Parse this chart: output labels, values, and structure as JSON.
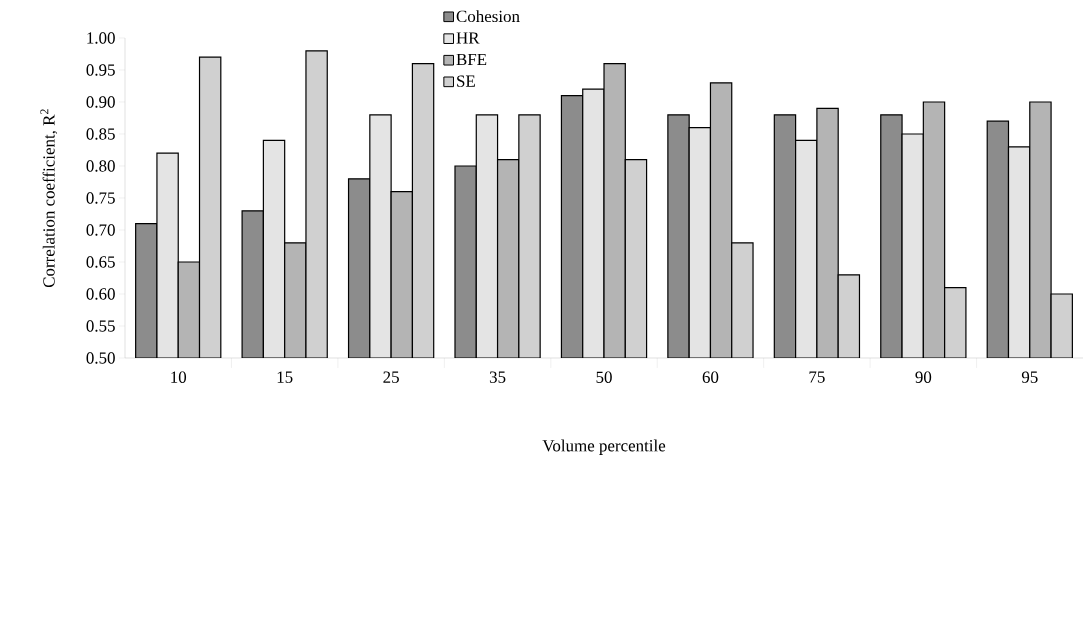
{
  "chart_data": {
    "type": "bar",
    "xlabel": "Volume percentile",
    "ylabel": "Correlation coefficient, R$^{2}$",
    "categories": [
      "10",
      "15",
      "25",
      "35",
      "50",
      "60",
      "75",
      "90",
      "95"
    ],
    "series": [
      {
        "name": "Cohesion",
        "color": "#8c8c8c",
        "values": [
          0.71,
          0.73,
          0.78,
          0.8,
          0.91,
          0.88,
          0.88,
          0.88,
          0.87
        ]
      },
      {
        "name": "HR",
        "color": "#e4e4e4",
        "values": [
          0.82,
          0.84,
          0.88,
          0.88,
          0.92,
          0.86,
          0.84,
          0.85,
          0.83
        ]
      },
      {
        "name": "BFE",
        "color": "#b4b4b4",
        "values": [
          0.65,
          0.68,
          0.76,
          0.81,
          0.96,
          0.93,
          0.89,
          0.9,
          0.9
        ]
      },
      {
        "name": "SE",
        "color": "#d0d0d0",
        "values": [
          0.97,
          0.98,
          0.96,
          0.88,
          0.81,
          0.68,
          0.63,
          0.61,
          0.6
        ]
      }
    ],
    "ylim": [
      0.5,
      1.0
    ],
    "yticks": [
      {
        "value": 0.5,
        "label": "0.50"
      },
      {
        "value": 0.55,
        "label": "0.55"
      },
      {
        "value": 0.6,
        "label": "0.60"
      },
      {
        "value": 0.65,
        "label": "0.65"
      },
      {
        "value": 0.7,
        "label": "0.70"
      },
      {
        "value": 0.75,
        "label": "0.75"
      },
      {
        "value": 0.8,
        "label": "0.80"
      },
      {
        "value": 0.85,
        "label": "0.85"
      },
      {
        "value": 0.9,
        "label": "0.90"
      },
      {
        "value": 0.95,
        "label": "0.95"
      },
      {
        "value": 1.0,
        "label": "1.00"
      }
    ],
    "legend": "top",
    "grid": false
  }
}
